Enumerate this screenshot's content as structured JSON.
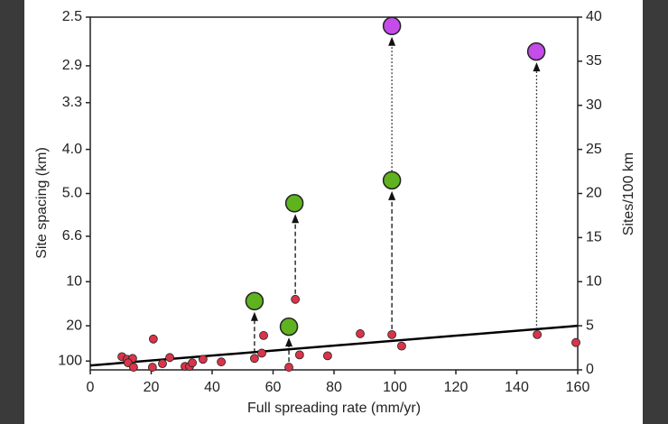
{
  "chart_data": {
    "type": "scatter",
    "xlabel": "Full spreading rate (mm/yr)",
    "ylabel": "Site spacing (km)",
    "y2label": "Sites/100 km",
    "xlim": [
      0,
      160
    ],
    "xticks": [
      0,
      20,
      40,
      60,
      80,
      100,
      120,
      140,
      160
    ],
    "yscale": "reciprocal",
    "ylim": [
      null,
      2.5
    ],
    "yticks": [
      2.5,
      2.9,
      3.3,
      {
        "value": 4,
        "label": "4.0"
      },
      {
        "value": 5,
        "label": "5.0"
      },
      6.6,
      10,
      20,
      100
    ],
    "y2lim": [
      0,
      40
    ],
    "y2ticks": [
      0,
      5,
      10,
      15,
      20,
      25,
      30,
      35,
      40
    ],
    "series": [
      {
        "color": "#d8344a",
        "marker": "small",
        "axis": "y2",
        "x": [
          10.4,
          12.1,
          13.9,
          12.4,
          14.2,
          20.7,
          20.4,
          23.7,
          26.1,
          31.1,
          32.6,
          33.5,
          37.0,
          43.0,
          53.9,
          56.3,
          56.9,
          65.2,
          67.3,
          68.7,
          77.9,
          88.6,
          99.0,
          102.2,
          146.7,
          159.4
        ],
        "values": [
          1.5,
          1.2,
          1.3,
          0.8,
          0.3,
          3.5,
          0.3,
          0.7,
          1.4,
          0.4,
          0.4,
          0.8,
          1.2,
          0.9,
          1.3,
          1.9,
          3.9,
          0.3,
          8.0,
          1.7,
          1.6,
          4.1,
          4.0,
          2.7,
          4.0,
          3.1
        ]
      },
      {
        "color": "#5fb31f",
        "marker": "large",
        "axis": "y2",
        "x": [
          53.9,
          65.2,
          67.0,
          99.0
        ],
        "values": [
          7.8,
          4.9,
          18.9,
          21.5
        ]
      },
      {
        "color": "#c44ce8",
        "marker": "large",
        "axis": "y2",
        "x": [
          99.0,
          146.4
        ],
        "values": [
          39.0,
          36.1
        ]
      }
    ],
    "trend": {
      "x": [
        0,
        160
      ],
      "values": [
        0.5,
        5.0
      ],
      "color": "#000000"
    },
    "arrows": [
      {
        "x": 53.9,
        "from": 1.3,
        "to": 7.8,
        "style": "dashed"
      },
      {
        "x": 65.2,
        "from": 0.3,
        "to": 4.9,
        "style": "dashed"
      },
      {
        "x": 67.3,
        "from": 8.0,
        "to": 18.9,
        "style": "dashed"
      },
      {
        "x": 99.0,
        "from": 4.0,
        "to": 21.5,
        "style": "dashed"
      },
      {
        "x": 99.0,
        "from": 21.5,
        "to": 39.0,
        "style": "dotted"
      },
      {
        "x": 146.5,
        "from": 4.0,
        "to": 36.1,
        "style": "dotted"
      }
    ]
  }
}
